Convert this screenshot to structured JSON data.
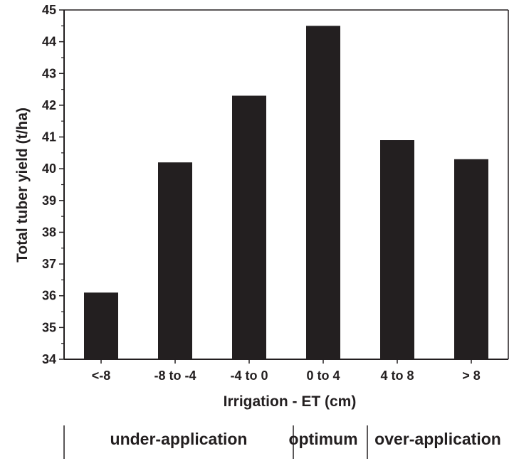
{
  "chart_data": {
    "type": "bar",
    "categories": [
      "<-8",
      "-8 to -4",
      "-4 to 0",
      "0 to 4",
      "4 to 8",
      "> 8"
    ],
    "values": [
      36.1,
      40.2,
      42.3,
      44.5,
      40.9,
      40.3
    ],
    "xlabel": "Irrigation - ET  (cm)",
    "ylabel": "Total tuber yield (t/ha)",
    "ylim": [
      34,
      45
    ],
    "yticks": [
      34,
      35,
      36,
      37,
      38,
      39,
      40,
      41,
      42,
      43,
      44,
      45
    ],
    "grid": false,
    "bar_color": "#231f20",
    "regions": [
      {
        "label": "under-application",
        "categories": [
          "<-8",
          "-8 to -4",
          "-4 to 0"
        ]
      },
      {
        "label": "optimum",
        "categories": [
          "0 to 4"
        ]
      },
      {
        "label": "over-application",
        "categories": [
          "4 to 8",
          "> 8"
        ]
      }
    ]
  }
}
